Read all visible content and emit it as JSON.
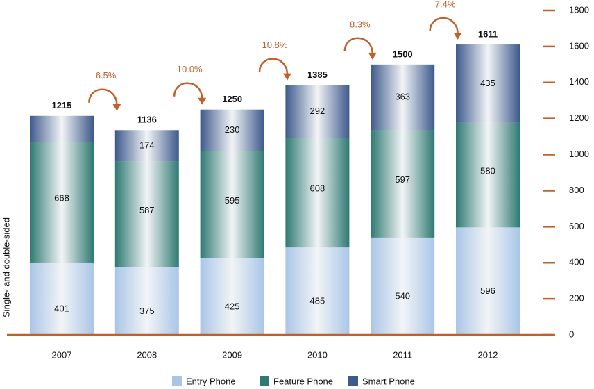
{
  "chart_data": {
    "type": "stacked_bar",
    "y_label": "Single- and double-sided",
    "categories": [
      "2007",
      "2008",
      "2009",
      "2010",
      "2011",
      "2012"
    ],
    "series": [
      {
        "name": "Entry Phone",
        "color": "#a9c6e8",
        "values": [
          401,
          375,
          425,
          485,
          540,
          596
        ]
      },
      {
        "name": "Feature Phone",
        "color": "#2e7a72",
        "values": [
          668,
          587,
          595,
          608,
          597,
          580
        ]
      },
      {
        "name": "Smart Phone",
        "color": "#3d5a8c",
        "values": [
          146,
          174,
          230,
          292,
          363,
          435
        ],
        "value_labels": [
          null,
          "174",
          "230",
          "292",
          "363",
          "435"
        ]
      }
    ],
    "totals": [
      1215,
      1136,
      1250,
      1385,
      1500,
      1611
    ],
    "growth": {
      "values": [
        -6.5,
        10.0,
        10.8,
        8.3,
        7.4
      ],
      "value_labels": [
        "-6.5%",
        "10.0%",
        "10.8%",
        "8.3%",
        "7.4%"
      ]
    },
    "ylim": [
      0,
      1800
    ],
    "yticks": [
      0,
      200,
      400,
      600,
      800,
      1000,
      1200,
      1400,
      1600,
      1800
    ],
    "axis_color": "#c0602a"
  }
}
